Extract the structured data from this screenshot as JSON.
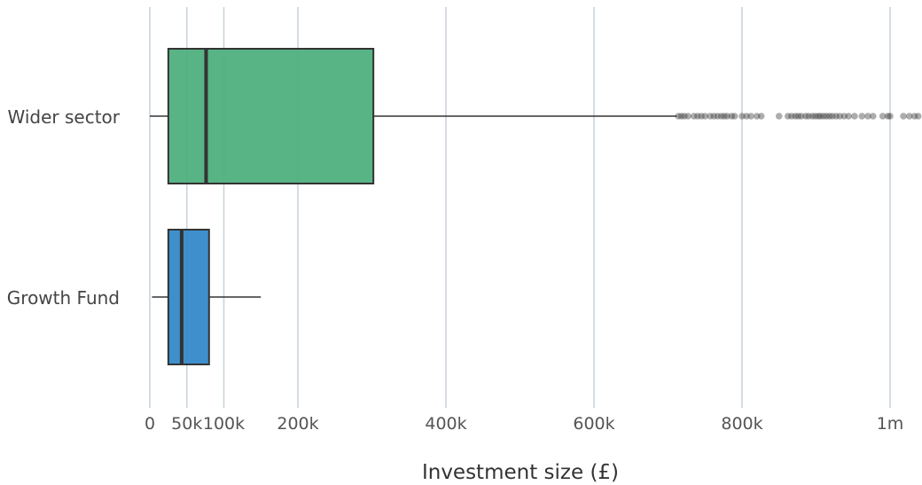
{
  "chart_data": {
    "type": "box",
    "orientation": "horizontal",
    "title": "",
    "xlabel": "Investment size (£)",
    "ylabel": "",
    "xlim": [
      0,
      1040000
    ],
    "grid": "vertical",
    "x_ticks": [
      {
        "value": 0,
        "label": "0"
      },
      {
        "value": 50000,
        "label": "50k"
      },
      {
        "value": 100000,
        "label": "100k"
      },
      {
        "value": 200000,
        "label": "200k"
      },
      {
        "value": 400000,
        "label": "400k"
      },
      {
        "value": 600000,
        "label": "600k"
      },
      {
        "value": 800000,
        "label": "800k"
      },
      {
        "value": 1000000,
        "label": "1m"
      }
    ],
    "series": [
      {
        "name": "Wider sector",
        "color": "#4aae7b",
        "whisker_low": 0,
        "q1": 25000,
        "median": 76000,
        "q3": 302000,
        "whisker_high": 712000,
        "outliers": [
          714000,
          718000,
          722000,
          727000,
          735000,
          740000,
          745000,
          750000,
          757000,
          762000,
          767000,
          772000,
          776000,
          780000,
          786000,
          790000,
          800000,
          806000,
          812000,
          820000,
          826000,
          850000,
          862000,
          867000,
          872000,
          876000,
          880000,
          886000,
          890000,
          895000,
          899000,
          903000,
          906000,
          910000,
          914000,
          918000,
          922000,
          927000,
          932000,
          938000,
          944000,
          952000,
          962000,
          970000,
          977000,
          990000,
          997000,
          1000000,
          1018000,
          1026000,
          1033000,
          1038000
        ]
      },
      {
        "name": "Growth Fund",
        "color": "#2e86c8",
        "whisker_low": 3000,
        "q1": 25000,
        "median": 43000,
        "q3": 80000,
        "whisker_high": 150000,
        "outliers": []
      }
    ]
  }
}
